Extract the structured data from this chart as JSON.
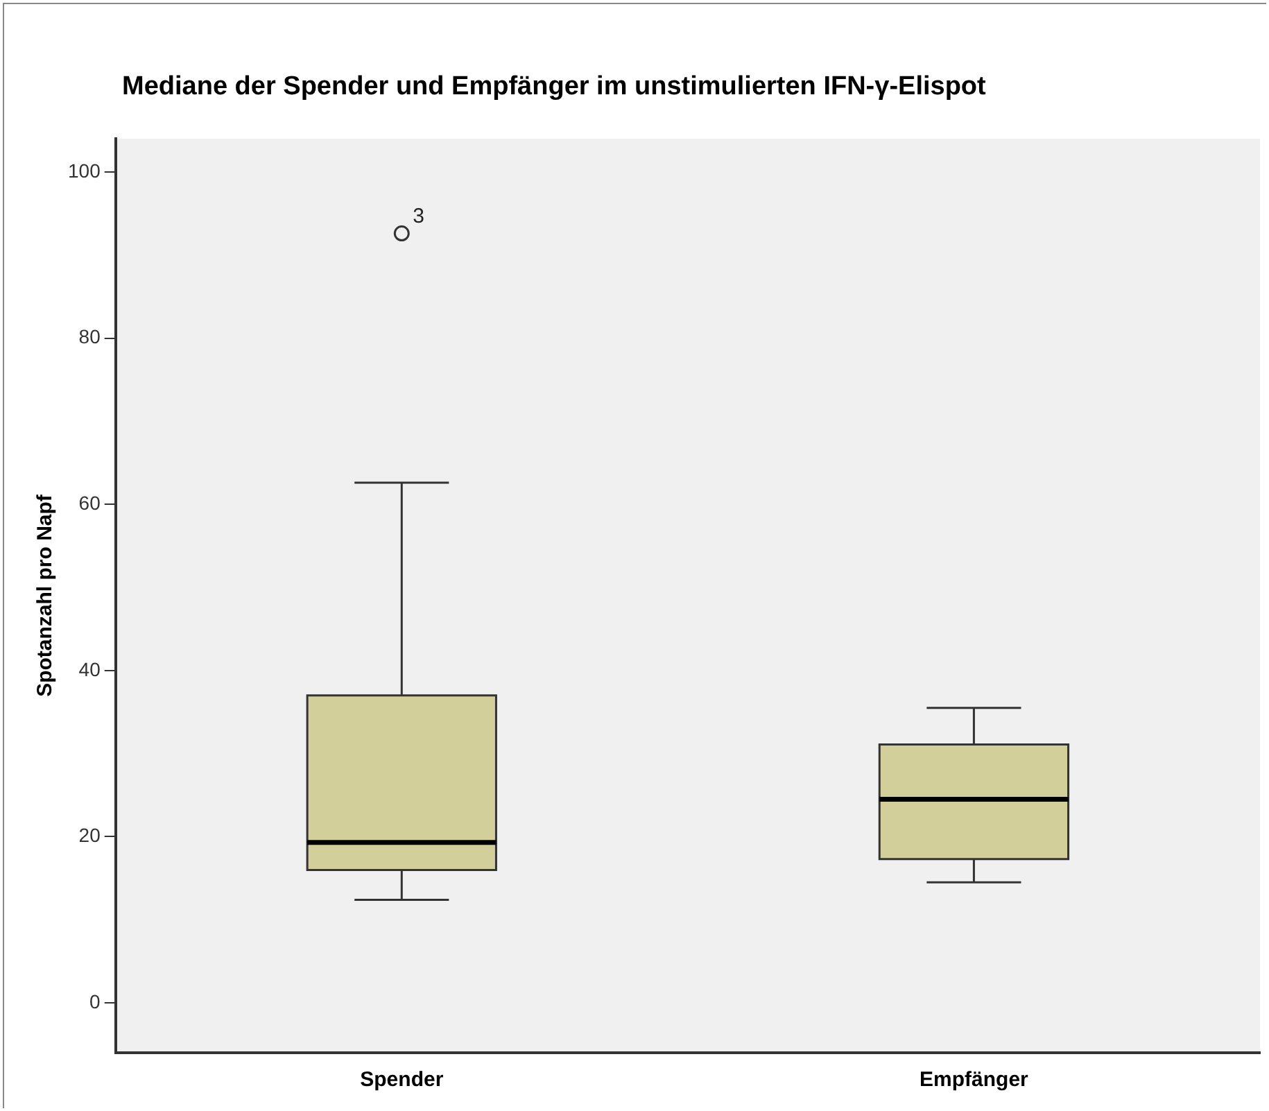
{
  "chart_data": {
    "type": "box",
    "title": "Mediane der Spender und Empfänger im unstimulierten IFN-γ-Elispot",
    "ylabel": "Spotanzahl pro Napf",
    "categories": [
      "Spender",
      "Empfänger"
    ],
    "boxes": [
      {
        "low": 12.4,
        "q1": 16.0,
        "median": 19.3,
        "q3": 37.0,
        "high": 62.6,
        "outliers": [
          92.6
        ]
      },
      {
        "low": 14.5,
        "q1": 17.3,
        "median": 24.5,
        "q3": 31.1,
        "high": 35.5
      }
    ],
    "color": "#d3cf9a",
    "ylim": [
      -6,
      104
    ],
    "yticks": [
      0,
      20,
      40,
      60,
      80,
      100
    ],
    "annotations": [
      "3"
    ],
    "grid": false,
    "legend": false
  }
}
